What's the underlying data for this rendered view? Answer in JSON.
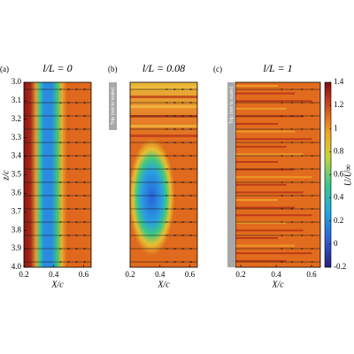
{
  "chart_data": [
    {
      "type": "contour",
      "panel_label": "(a)",
      "title": "l/L = 0",
      "xlabel": "X/c",
      "ylabel": "z/c",
      "xlim": [
        0.2,
        0.65
      ],
      "xticks": [
        0.2,
        0.4,
        0.6
      ],
      "ylim": [
        3.0,
        4.0
      ],
      "y_inverted": true,
      "yticks": [
        {
          "value": 3.0,
          "label": "3.0"
        },
        3.1,
        3.2,
        3.3,
        3.4,
        3.5,
        3.6,
        3.7,
        3.8,
        3.9,
        {
          "value": 4.0,
          "label": "4.0"
        }
      ]
    },
    {
      "type": "contour",
      "panel_label": "(b)",
      "title": "l/L = 0.08",
      "xlabel": "X/c",
      "annotation": "Trip (not to scale)",
      "xlim": [
        0.2,
        0.65
      ],
      "xticks": [
        0.2,
        0.4,
        0.6
      ],
      "ylim": [
        3.0,
        4.0
      ],
      "y_inverted": true
    },
    {
      "type": "contour",
      "panel_label": "(c)",
      "title": "l/L = 1",
      "xlabel": "X/c",
      "annotation": "Trip (not to scale)",
      "xlim": [
        0.17,
        0.65
      ],
      "xticks": [
        0.2,
        0.4,
        0.6
      ],
      "ylim": [
        3.0,
        4.0
      ],
      "y_inverted": true
    }
  ],
  "colorbar": {
    "label": "U/U∞",
    "lim": [
      -0.2,
      1.4
    ],
    "ticks": [
      -0.2,
      0,
      0.2,
      0.4,
      0.6,
      0.8,
      1,
      1.2,
      1.4
    ]
  }
}
